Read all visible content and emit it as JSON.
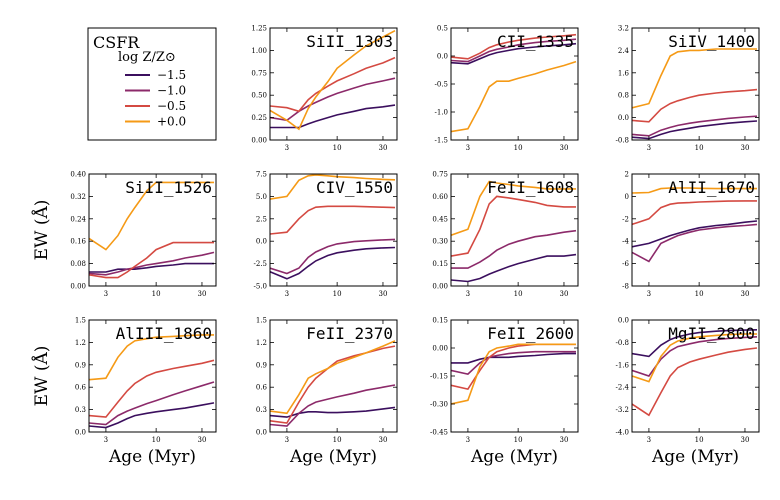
{
  "figure_label": "CSFR",
  "legend": {
    "title": "log Z/Z⊙",
    "entries": [
      {
        "label": "−1.5",
        "color": "#3b0f5e"
      },
      {
        "label": "−1.0",
        "color": "#8c2a6a"
      },
      {
        "label": "−0.5",
        "color": "#d44a42"
      },
      {
        "label": "+0.0",
        "color": "#f59a16"
      }
    ]
  },
  "shared_axes": {
    "xlabel": "Age (Myr)",
    "ylabel": "EW (Å)",
    "xticks": [
      3,
      10,
      30
    ],
    "xlim": [
      2,
      42
    ]
  },
  "chart_data": [
    {
      "type": "line",
      "title": "SiII_1303",
      "xlabel": "",
      "ylabel": "",
      "ylim": [
        0,
        1.25
      ],
      "yticks": [
        0.0,
        0.25,
        0.5,
        0.75,
        1.0,
        1.25
      ],
      "ytick_labels": [
        "0.00",
        "0.25",
        "0.50",
        "0.75",
        "1.00",
        "1.25"
      ],
      "x": [
        2,
        3,
        4,
        5,
        6,
        8,
        10,
        15,
        20,
        30,
        40
      ],
      "series": [
        {
          "name": "−1.5",
          "values": [
            0.14,
            0.14,
            0.14,
            0.18,
            0.21,
            0.25,
            0.28,
            0.32,
            0.35,
            0.37,
            0.39
          ]
        },
        {
          "name": "−1.0",
          "values": [
            0.25,
            0.22,
            0.32,
            0.38,
            0.42,
            0.48,
            0.52,
            0.58,
            0.62,
            0.66,
            0.69
          ]
        },
        {
          "name": "−0.5",
          "values": [
            0.38,
            0.36,
            0.32,
            0.45,
            0.52,
            0.6,
            0.66,
            0.74,
            0.8,
            0.86,
            0.92
          ]
        },
        {
          "name": "+0.0",
          "values": [
            0.33,
            0.22,
            0.12,
            0.35,
            0.48,
            0.65,
            0.8,
            0.95,
            1.05,
            1.15,
            1.22
          ]
        }
      ]
    },
    {
      "type": "line",
      "title": "CII_1335",
      "xlabel": "",
      "ylabel": "",
      "ylim": [
        -1.5,
        0.5
      ],
      "yticks": [
        -1.5,
        -1.0,
        -0.5,
        0.0,
        0.5
      ],
      "ytick_labels": [
        "-1.5",
        "-1.0",
        "-0.5",
        "0.0",
        "0.5"
      ],
      "x": [
        2,
        3,
        4,
        5,
        6,
        8,
        10,
        15,
        20,
        30,
        40
      ],
      "series": [
        {
          "name": "−1.5",
          "values": [
            -0.12,
            -0.14,
            -0.05,
            0.02,
            0.06,
            0.1,
            0.13,
            0.16,
            0.18,
            0.2,
            0.22
          ]
        },
        {
          "name": "−1.0",
          "values": [
            -0.08,
            -0.1,
            0.0,
            0.08,
            0.12,
            0.16,
            0.2,
            0.24,
            0.26,
            0.28,
            0.3
          ]
        },
        {
          "name": "−0.5",
          "values": [
            -0.02,
            -0.05,
            0.05,
            0.15,
            0.2,
            0.25,
            0.28,
            0.32,
            0.34,
            0.36,
            0.38
          ]
        },
        {
          "name": "+0.0",
          "values": [
            -1.35,
            -1.3,
            -0.9,
            -0.55,
            -0.45,
            -0.45,
            -0.4,
            -0.32,
            -0.25,
            -0.17,
            -0.1
          ]
        }
      ]
    },
    {
      "type": "line",
      "title": "SiIV_1400",
      "xlabel": "",
      "ylabel": "",
      "ylim": [
        -0.8,
        3.2
      ],
      "yticks": [
        -0.8,
        0.0,
        0.8,
        1.6,
        2.4,
        3.2
      ],
      "ytick_labels": [
        "-0.8",
        "0.0",
        "0.8",
        "1.6",
        "2.4",
        "3.2"
      ],
      "x": [
        2,
        3,
        4,
        5,
        6,
        8,
        10,
        15,
        20,
        30,
        40
      ],
      "series": [
        {
          "name": "−1.5",
          "values": [
            -0.7,
            -0.75,
            -0.6,
            -0.5,
            -0.45,
            -0.38,
            -0.32,
            -0.25,
            -0.2,
            -0.15,
            -0.12
          ]
        },
        {
          "name": "−1.0",
          "values": [
            -0.6,
            -0.65,
            -0.45,
            -0.35,
            -0.28,
            -0.2,
            -0.15,
            -0.08,
            -0.03,
            0.02,
            0.05
          ]
        },
        {
          "name": "−0.5",
          "values": [
            -0.1,
            -0.15,
            0.3,
            0.5,
            0.6,
            0.72,
            0.8,
            0.88,
            0.92,
            0.96,
            1.0
          ]
        },
        {
          "name": "+0.0",
          "values": [
            0.35,
            0.5,
            1.5,
            2.2,
            2.35,
            2.4,
            2.4,
            2.45,
            2.45,
            2.45,
            2.45
          ]
        }
      ]
    },
    {
      "type": "line",
      "title": "SiII_1526",
      "xlabel": "",
      "ylabel": "EW (Å)",
      "ylim": [
        0,
        0.4
      ],
      "yticks": [
        0.0,
        0.08,
        0.16,
        0.24,
        0.32,
        0.4
      ],
      "ytick_labels": [
        "0.00",
        "0.08",
        "0.16",
        "0.24",
        "0.32",
        "0.40"
      ],
      "x": [
        2,
        3,
        4,
        5,
        6,
        8,
        10,
        15,
        20,
        30,
        40
      ],
      "series": [
        {
          "name": "−1.5",
          "values": [
            0.05,
            0.05,
            0.06,
            0.06,
            0.06,
            0.065,
            0.07,
            0.075,
            0.08,
            0.08,
            0.08
          ]
        },
        {
          "name": "−1.0",
          "values": [
            0.045,
            0.04,
            0.05,
            0.06,
            0.065,
            0.075,
            0.08,
            0.09,
            0.1,
            0.11,
            0.12
          ]
        },
        {
          "name": "−0.5",
          "values": [
            0.04,
            0.03,
            0.03,
            0.05,
            0.07,
            0.1,
            0.13,
            0.155,
            0.155,
            0.155,
            0.155
          ]
        },
        {
          "name": "+0.0",
          "values": [
            0.17,
            0.13,
            0.18,
            0.24,
            0.28,
            0.34,
            0.37,
            0.37,
            0.37,
            0.37,
            0.37
          ]
        }
      ]
    },
    {
      "type": "line",
      "title": "CIV_1550",
      "xlabel": "",
      "ylabel": "",
      "ylim": [
        -5.0,
        7.5
      ],
      "yticks": [
        -5.0,
        -2.5,
        0.0,
        2.5,
        5.0,
        7.5
      ],
      "ytick_labels": [
        "-5.0",
        "-2.5",
        "0.0",
        "2.5",
        "5.0",
        "7.5"
      ],
      "x": [
        2,
        3,
        4,
        5,
        6,
        8,
        10,
        15,
        20,
        30,
        40
      ],
      "series": [
        {
          "name": "−1.5",
          "values": [
            -3.4,
            -4.2,
            -3.6,
            -2.8,
            -2.2,
            -1.6,
            -1.3,
            -1.0,
            -0.85,
            -0.75,
            -0.7
          ]
        },
        {
          "name": "−1.0",
          "values": [
            -3.0,
            -3.6,
            -3.0,
            -1.8,
            -1.2,
            -0.6,
            -0.3,
            -0.05,
            0.05,
            0.15,
            0.2
          ]
        },
        {
          "name": "−0.5",
          "values": [
            0.8,
            1.0,
            2.5,
            3.4,
            3.8,
            3.9,
            3.9,
            3.9,
            3.85,
            3.8,
            3.75
          ]
        },
        {
          "name": "+0.0",
          "values": [
            4.7,
            5.0,
            6.8,
            7.3,
            7.4,
            7.3,
            7.2,
            7.1,
            7.0,
            6.9,
            6.85
          ]
        }
      ]
    },
    {
      "type": "line",
      "title": "FeII_1608",
      "xlabel": "",
      "ylabel": "",
      "ylim": [
        0,
        0.75
      ],
      "yticks": [
        0.0,
        0.15,
        0.3,
        0.45,
        0.6,
        0.75
      ],
      "ytick_labels": [
        "0.00",
        "0.15",
        "0.30",
        "0.45",
        "0.60",
        "0.75"
      ],
      "x": [
        2,
        3,
        4,
        5,
        6,
        8,
        10,
        15,
        20,
        30,
        40
      ],
      "series": [
        {
          "name": "−1.5",
          "values": [
            0.04,
            0.03,
            0.05,
            0.08,
            0.1,
            0.13,
            0.15,
            0.18,
            0.2,
            0.2,
            0.21
          ]
        },
        {
          "name": "−1.0",
          "values": [
            0.12,
            0.12,
            0.16,
            0.2,
            0.24,
            0.28,
            0.3,
            0.33,
            0.34,
            0.36,
            0.37
          ]
        },
        {
          "name": "−0.5",
          "values": [
            0.2,
            0.22,
            0.38,
            0.55,
            0.6,
            0.59,
            0.58,
            0.56,
            0.54,
            0.53,
            0.53
          ]
        },
        {
          "name": "+0.0",
          "values": [
            0.34,
            0.38,
            0.6,
            0.7,
            0.69,
            0.68,
            0.67,
            0.66,
            0.65,
            0.65,
            0.65
          ]
        }
      ]
    },
    {
      "type": "line",
      "title": "AlII_1670",
      "xlabel": "",
      "ylabel": "",
      "ylim": [
        -8,
        2
      ],
      "yticks": [
        -8,
        -6,
        -4,
        -2,
        0,
        2
      ],
      "ytick_labels": [
        "-8",
        "-6",
        "-4",
        "-2",
        "0",
        "2"
      ],
      "x": [
        2,
        3,
        4,
        5,
        6,
        8,
        10,
        15,
        20,
        30,
        40
      ],
      "series": [
        {
          "name": "−1.5",
          "values": [
            -4.5,
            -4.2,
            -3.8,
            -3.5,
            -3.3,
            -3.0,
            -2.8,
            -2.6,
            -2.5,
            -2.3,
            -2.2
          ]
        },
        {
          "name": "−1.0",
          "values": [
            -5.0,
            -5.8,
            -4.2,
            -3.8,
            -3.5,
            -3.2,
            -3.0,
            -2.8,
            -2.7,
            -2.6,
            -2.5
          ]
        },
        {
          "name": "−0.5",
          "values": [
            -2.5,
            -2.0,
            -1.0,
            -0.7,
            -0.6,
            -0.55,
            -0.5,
            -0.45,
            -0.42,
            -0.4,
            -0.4
          ]
        },
        {
          "name": "+0.0",
          "values": [
            0.3,
            0.35,
            0.7,
            0.75,
            0.75,
            0.75,
            0.72,
            0.7,
            0.7,
            0.7,
            0.7
          ]
        }
      ]
    },
    {
      "type": "line",
      "title": "AlIII_1860",
      "xlabel": "Age (Myr)",
      "ylabel": "EW (Å)",
      "ylim": [
        0,
        1.5
      ],
      "yticks": [
        0.0,
        0.3,
        0.6,
        0.9,
        1.2,
        1.5
      ],
      "ytick_labels": [
        "0.0",
        "0.3",
        "0.6",
        "0.9",
        "1.2",
        "1.5"
      ],
      "x": [
        2,
        3,
        4,
        5,
        6,
        8,
        10,
        15,
        20,
        30,
        40
      ],
      "series": [
        {
          "name": "−1.5",
          "values": [
            0.08,
            0.06,
            0.12,
            0.18,
            0.22,
            0.25,
            0.27,
            0.3,
            0.32,
            0.36,
            0.39
          ]
        },
        {
          "name": "−1.0",
          "values": [
            0.12,
            0.1,
            0.22,
            0.28,
            0.32,
            0.38,
            0.42,
            0.5,
            0.55,
            0.62,
            0.67
          ]
        },
        {
          "name": "−0.5",
          "values": [
            0.22,
            0.2,
            0.4,
            0.55,
            0.65,
            0.75,
            0.8,
            0.85,
            0.88,
            0.92,
            0.96
          ]
        },
        {
          "name": "+0.0",
          "values": [
            0.7,
            0.72,
            1.0,
            1.15,
            1.22,
            1.25,
            1.27,
            1.28,
            1.29,
            1.3,
            1.3
          ]
        }
      ]
    },
    {
      "type": "line",
      "title": "FeII_2370",
      "xlabel": "Age (Myr)",
      "ylabel": "",
      "ylim": [
        0,
        1.5
      ],
      "yticks": [
        0.0,
        0.3,
        0.6,
        0.9,
        1.2,
        1.5
      ],
      "ytick_labels": [
        "0.0",
        "0.3",
        "0.6",
        "0.9",
        "1.2",
        "1.5"
      ],
      "x": [
        2,
        3,
        4,
        5,
        6,
        8,
        10,
        15,
        20,
        30,
        40
      ],
      "series": [
        {
          "name": "−1.5",
          "values": [
            0.22,
            0.2,
            0.25,
            0.27,
            0.27,
            0.26,
            0.26,
            0.27,
            0.28,
            0.31,
            0.33
          ]
        },
        {
          "name": "−1.0",
          "values": [
            0.1,
            0.08,
            0.25,
            0.35,
            0.4,
            0.44,
            0.47,
            0.52,
            0.56,
            0.6,
            0.63
          ]
        },
        {
          "name": "−0.5",
          "values": [
            0.15,
            0.12,
            0.4,
            0.6,
            0.72,
            0.85,
            0.95,
            1.02,
            1.06,
            1.12,
            1.15
          ]
        },
        {
          "name": "+0.0",
          "values": [
            0.28,
            0.25,
            0.5,
            0.72,
            0.78,
            0.85,
            0.92,
            1.0,
            1.06,
            1.15,
            1.22
          ]
        }
      ]
    },
    {
      "type": "line",
      "title": "FeII_2600",
      "xlabel": "Age (Myr)",
      "ylabel": "",
      "ylim": [
        -0.45,
        0.15
      ],
      "yticks": [
        -0.45,
        -0.3,
        -0.15,
        0.0,
        0.15
      ],
      "ytick_labels": [
        "-0.45",
        "-0.30",
        "-0.15",
        "0.00",
        "0.15"
      ],
      "x": [
        2,
        3,
        4,
        5,
        6,
        8,
        10,
        15,
        20,
        30,
        40
      ],
      "series": [
        {
          "name": "−1.5",
          "values": [
            -0.08,
            -0.08,
            -0.06,
            -0.05,
            -0.05,
            -0.05,
            -0.045,
            -0.04,
            -0.035,
            -0.03,
            -0.03
          ]
        },
        {
          "name": "−1.0",
          "values": [
            -0.12,
            -0.14,
            -0.08,
            -0.05,
            -0.04,
            -0.03,
            -0.025,
            -0.02,
            -0.02,
            -0.02,
            -0.02
          ]
        },
        {
          "name": "−0.5",
          "values": [
            -0.2,
            -0.22,
            -0.12,
            -0.05,
            -0.02,
            0.0,
            0.01,
            0.02,
            0.02,
            0.02,
            0.02
          ]
        },
        {
          "name": "+0.0",
          "values": [
            -0.3,
            -0.28,
            -0.1,
            -0.02,
            0.0,
            0.01,
            0.02,
            0.02,
            0.02,
            0.02,
            0.02
          ]
        }
      ]
    },
    {
      "type": "line",
      "title": "MgII_2800",
      "xlabel": "Age (Myr)",
      "ylabel": "",
      "ylim": [
        -4.0,
        0.0
      ],
      "yticks": [
        -4.0,
        -3.2,
        -2.4,
        -1.6,
        -0.8,
        0.0
      ],
      "ytick_labels": [
        "-4.0",
        "-3.2",
        "-2.4",
        "-1.6",
        "-0.8",
        "0.0"
      ],
      "x": [
        2,
        3,
        4,
        5,
        6,
        8,
        10,
        15,
        20,
        30,
        40
      ],
      "series": [
        {
          "name": "−1.5",
          "values": [
            -1.2,
            -1.3,
            -0.9,
            -0.7,
            -0.6,
            -0.5,
            -0.45,
            -0.4,
            -0.38,
            -0.36,
            -0.35
          ]
        },
        {
          "name": "−1.0",
          "values": [
            -1.8,
            -2.0,
            -1.4,
            -1.1,
            -0.95,
            -0.85,
            -0.78,
            -0.7,
            -0.66,
            -0.62,
            -0.6
          ]
        },
        {
          "name": "−0.5",
          "values": [
            -3.0,
            -3.4,
            -2.6,
            -2.0,
            -1.7,
            -1.5,
            -1.4,
            -1.25,
            -1.15,
            -1.05,
            -1.0
          ]
        },
        {
          "name": "+0.0",
          "values": [
            -2.0,
            -2.2,
            -1.3,
            -0.9,
            -0.75,
            -0.65,
            -0.6,
            -0.55,
            -0.52,
            -0.5,
            -0.5
          ]
        }
      ]
    }
  ]
}
